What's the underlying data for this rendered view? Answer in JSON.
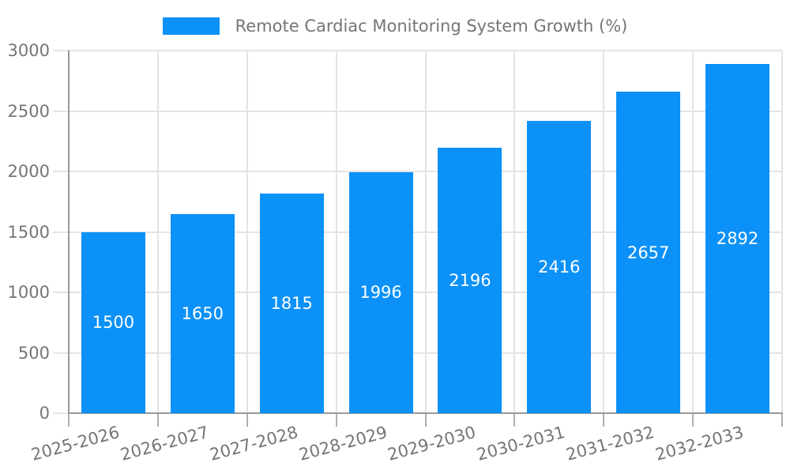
{
  "chart_data": {
    "type": "bar",
    "title": "Remote Cardiac Monitoring System Growth (%)",
    "categories": [
      "2025-2026",
      "2026-2027",
      "2027-2028",
      "2028-2029",
      "2029-2030",
      "2030-2031",
      "2031-2032",
      "2032-2033"
    ],
    "values": [
      1500,
      1650,
      1815,
      1996,
      2196,
      2416,
      2657,
      2892
    ],
    "bar_value_labels": [
      "1500",
      "1650",
      "1815",
      "1996",
      "2196",
      "2416",
      "2657",
      "2892"
    ],
    "xlabel": "",
    "ylabel": "",
    "ylim": [
      0,
      3000
    ],
    "yticks": [
      0,
      500,
      1000,
      1500,
      2000,
      2500,
      3000
    ],
    "grid": true,
    "legend_position": "top-center",
    "colors": {
      "bar": "#0b91f8",
      "bar_label": "#ffffff",
      "grid_line": "#e4e4e4",
      "axis_line": "#999999",
      "tick_mark": "#b0b0b0",
      "axis_text": "#757575",
      "legend_text": "#757575",
      "background": "#ffffff"
    }
  }
}
